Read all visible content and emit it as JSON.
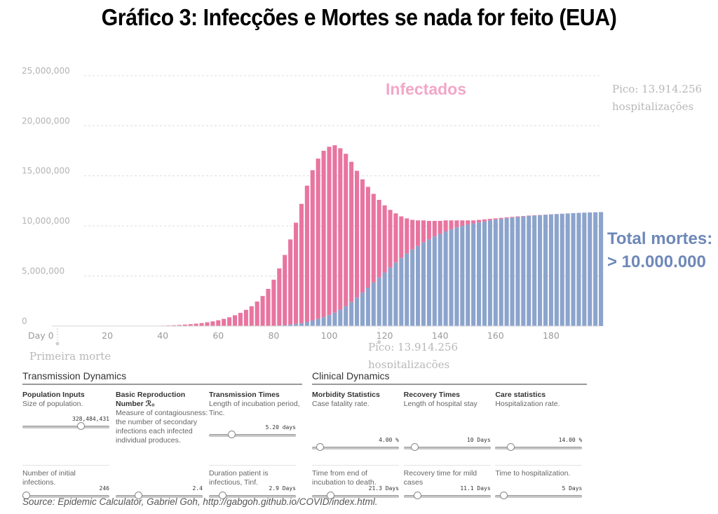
{
  "chart_data": {
    "type": "bar",
    "title": "Gráfico 3: Infecções e Mortes se nada for feito (EUA)",
    "xlabel": "",
    "ylabel": "",
    "xlim": [
      0,
      199
    ],
    "ylim": [
      0,
      28000000
    ],
    "y_ticks": [
      0,
      5000000,
      10000000,
      15000000,
      20000000,
      25000000
    ],
    "y_tick_labels": [
      "0",
      "5,000,000",
      "10,000,000",
      "15,000,000",
      "20,000,000",
      "25,000,000"
    ],
    "x_ticks": [
      0,
      20,
      40,
      60,
      80,
      100,
      120,
      140,
      160,
      180
    ],
    "x_tick_labels": [
      "Day 0",
      "20",
      "40",
      "60",
      "80",
      "100",
      "120",
      "140",
      "160",
      "180"
    ],
    "grid": "horizontal dashed",
    "bar_spacing_days": 2,
    "series": [
      {
        "name": "Total mortes",
        "color": "#8ca4cc",
        "x": [
          30,
          32,
          34,
          36,
          38,
          40,
          42,
          44,
          46,
          48,
          50,
          52,
          54,
          56,
          58,
          60,
          62,
          64,
          66,
          68,
          70,
          72,
          74,
          76,
          78,
          80,
          82,
          84,
          86,
          88,
          90,
          92,
          94,
          96,
          98,
          100,
          102,
          104,
          106,
          108,
          110,
          112,
          114,
          116,
          118,
          120,
          122,
          124,
          126,
          128,
          130,
          132,
          134,
          136,
          138,
          140,
          142,
          144,
          146,
          148,
          150,
          152,
          154,
          156,
          158,
          160,
          162,
          164,
          166,
          168,
          170,
          172,
          174,
          176,
          178,
          180,
          182,
          184,
          186,
          188,
          190,
          192,
          194,
          196,
          198
        ],
        "values": [
          0,
          0,
          0,
          0,
          0,
          0,
          0,
          0,
          0,
          0,
          0,
          0,
          0,
          0,
          0,
          0,
          0,
          0,
          0,
          0,
          0,
          0,
          0,
          0,
          10000,
          30000,
          60000,
          100000,
          150000,
          220000,
          300000,
          420000,
          560000,
          720000,
          900000,
          1100000,
          1350000,
          1650000,
          2000000,
          2400000,
          2850000,
          3350000,
          3850000,
          4350000,
          4850000,
          5350000,
          5850000,
          6350000,
          6800000,
          7250000,
          7650000,
          8000000,
          8350000,
          8650000,
          8950000,
          9200000,
          9450000,
          9650000,
          9850000,
          10000000,
          10150000,
          10250000,
          10350000,
          10450000,
          10550000,
          10630000,
          10700000,
          10770000,
          10830000,
          10890000,
          10940000,
          10990000,
          11030000,
          11070000,
          11110000,
          11150000,
          11180000,
          11210000,
          11240000,
          11270000,
          11300000,
          11320000,
          11340000,
          11360000,
          11380000
        ]
      },
      {
        "name": "Infectados",
        "color": "#e8759f",
        "x": [
          30,
          32,
          34,
          36,
          38,
          40,
          42,
          44,
          46,
          48,
          50,
          52,
          54,
          56,
          58,
          60,
          62,
          64,
          66,
          68,
          70,
          72,
          74,
          76,
          78,
          80,
          82,
          84,
          86,
          88,
          90,
          92,
          94,
          96,
          98,
          100,
          102,
          104,
          106,
          108,
          110,
          112,
          114,
          116,
          118,
          120,
          122,
          124,
          126,
          128,
          130,
          132,
          134,
          136,
          138,
          140,
          142,
          144,
          146,
          148,
          150,
          152,
          154,
          156,
          158,
          160,
          162,
          164,
          166,
          168,
          170,
          172,
          174,
          176,
          178,
          180,
          182,
          184,
          186,
          188,
          190,
          192,
          194,
          196,
          198
        ],
        "values": [
          5000,
          10000,
          15000,
          22000,
          30000,
          45000,
          60000,
          85000,
          110000,
          150000,
          190000,
          240000,
          300000,
          380000,
          470000,
          580000,
          720000,
          880000,
          1080000,
          1320000,
          1620000,
          1980000,
          2450000,
          3000000,
          3700000,
          4600000,
          5700000,
          7000000,
          8500000,
          10100000,
          11900000,
          13600000,
          15000000,
          16000000,
          16600000,
          16800000,
          16700000,
          16100000,
          15200000,
          14000000,
          12650000,
          11300000,
          10050000,
          8850000,
          7750000,
          6700000,
          5750000,
          4900000,
          4150000,
          3500000,
          2950000,
          2550000,
          2200000,
          1850000,
          1550000,
          1300000,
          1100000,
          900000,
          700000,
          550000,
          400000,
          300000,
          250000,
          200000,
          150000,
          120000,
          100000,
          80000,
          70000,
          60000,
          50000,
          40000,
          30000,
          25000,
          20000,
          15000,
          10000,
          8000,
          6000,
          5000,
          4000,
          3000,
          2000,
          1500,
          1000
        ]
      }
    ],
    "annotations": {
      "infectados": "Infectados",
      "total_mortes_1": "Total mortes:",
      "total_mortes_2": "> 10.000.000",
      "pico_right_1": "Pico: 13.914.256",
      "pico_right_2": "hospitalizações",
      "pico_bottom_1": "Pico: 13.914.256",
      "pico_bottom_2": "hospitalizações",
      "primeira_morte": "Primeira morte"
    },
    "marker_days": {
      "primeira_morte": 2,
      "pico": 118
    }
  },
  "panels": {
    "transmission": {
      "title": "Transmission Dynamics",
      "cols": [
        {
          "head": "Population Inputs",
          "desc": "Size of population.",
          "value": "328,484,431",
          "pos": 0.68,
          "desc2": "Number of initial infections.",
          "value2": "246",
          "pos2": 0.05
        },
        {
          "head": "Basic Reproduction Number ℛ₀",
          "desc": "Measure of contagiousness: the number of secondary infections each infected individual produces.",
          "value": "",
          "pos": -1,
          "desc2": "",
          "value2": "2.4",
          "pos2": 0.27
        },
        {
          "head": "Transmission Times",
          "desc": "Length of incubation period, Tinc.",
          "value": "5.20 days",
          "pos": 0.27,
          "desc2": "Duration patient is infectious, Tinf.",
          "value2": "2.9 Days",
          "pos2": 0.16
        }
      ]
    },
    "clinical": {
      "title": "Clinical Dynamics",
      "cols": [
        {
          "head": "Morbidity Statistics",
          "desc": "Case fatality rate.",
          "value": "4.00 %",
          "pos": 0.1,
          "desc2": "Time from end of incubation to death.",
          "value2": "21.3 Days",
          "pos2": 0.22
        },
        {
          "head": "Recovery Times",
          "desc": "Length of hospital stay",
          "value": "10 Days",
          "pos": 0.13,
          "desc2": "Recovery time for mild cases",
          "value2": "11.1 Days",
          "pos2": 0.16
        },
        {
          "head": "Care statistics",
          "desc": "Hospitalization rate.",
          "value": "14.00 %",
          "pos": 0.18,
          "desc2": "Time to hospitalization.",
          "value2": "5 Days",
          "pos2": 0.1
        }
      ]
    }
  },
  "source": "Source: Epidemic Calculator, Gabriel Goh, http://gabgoh.github.io/COVID/index.html."
}
